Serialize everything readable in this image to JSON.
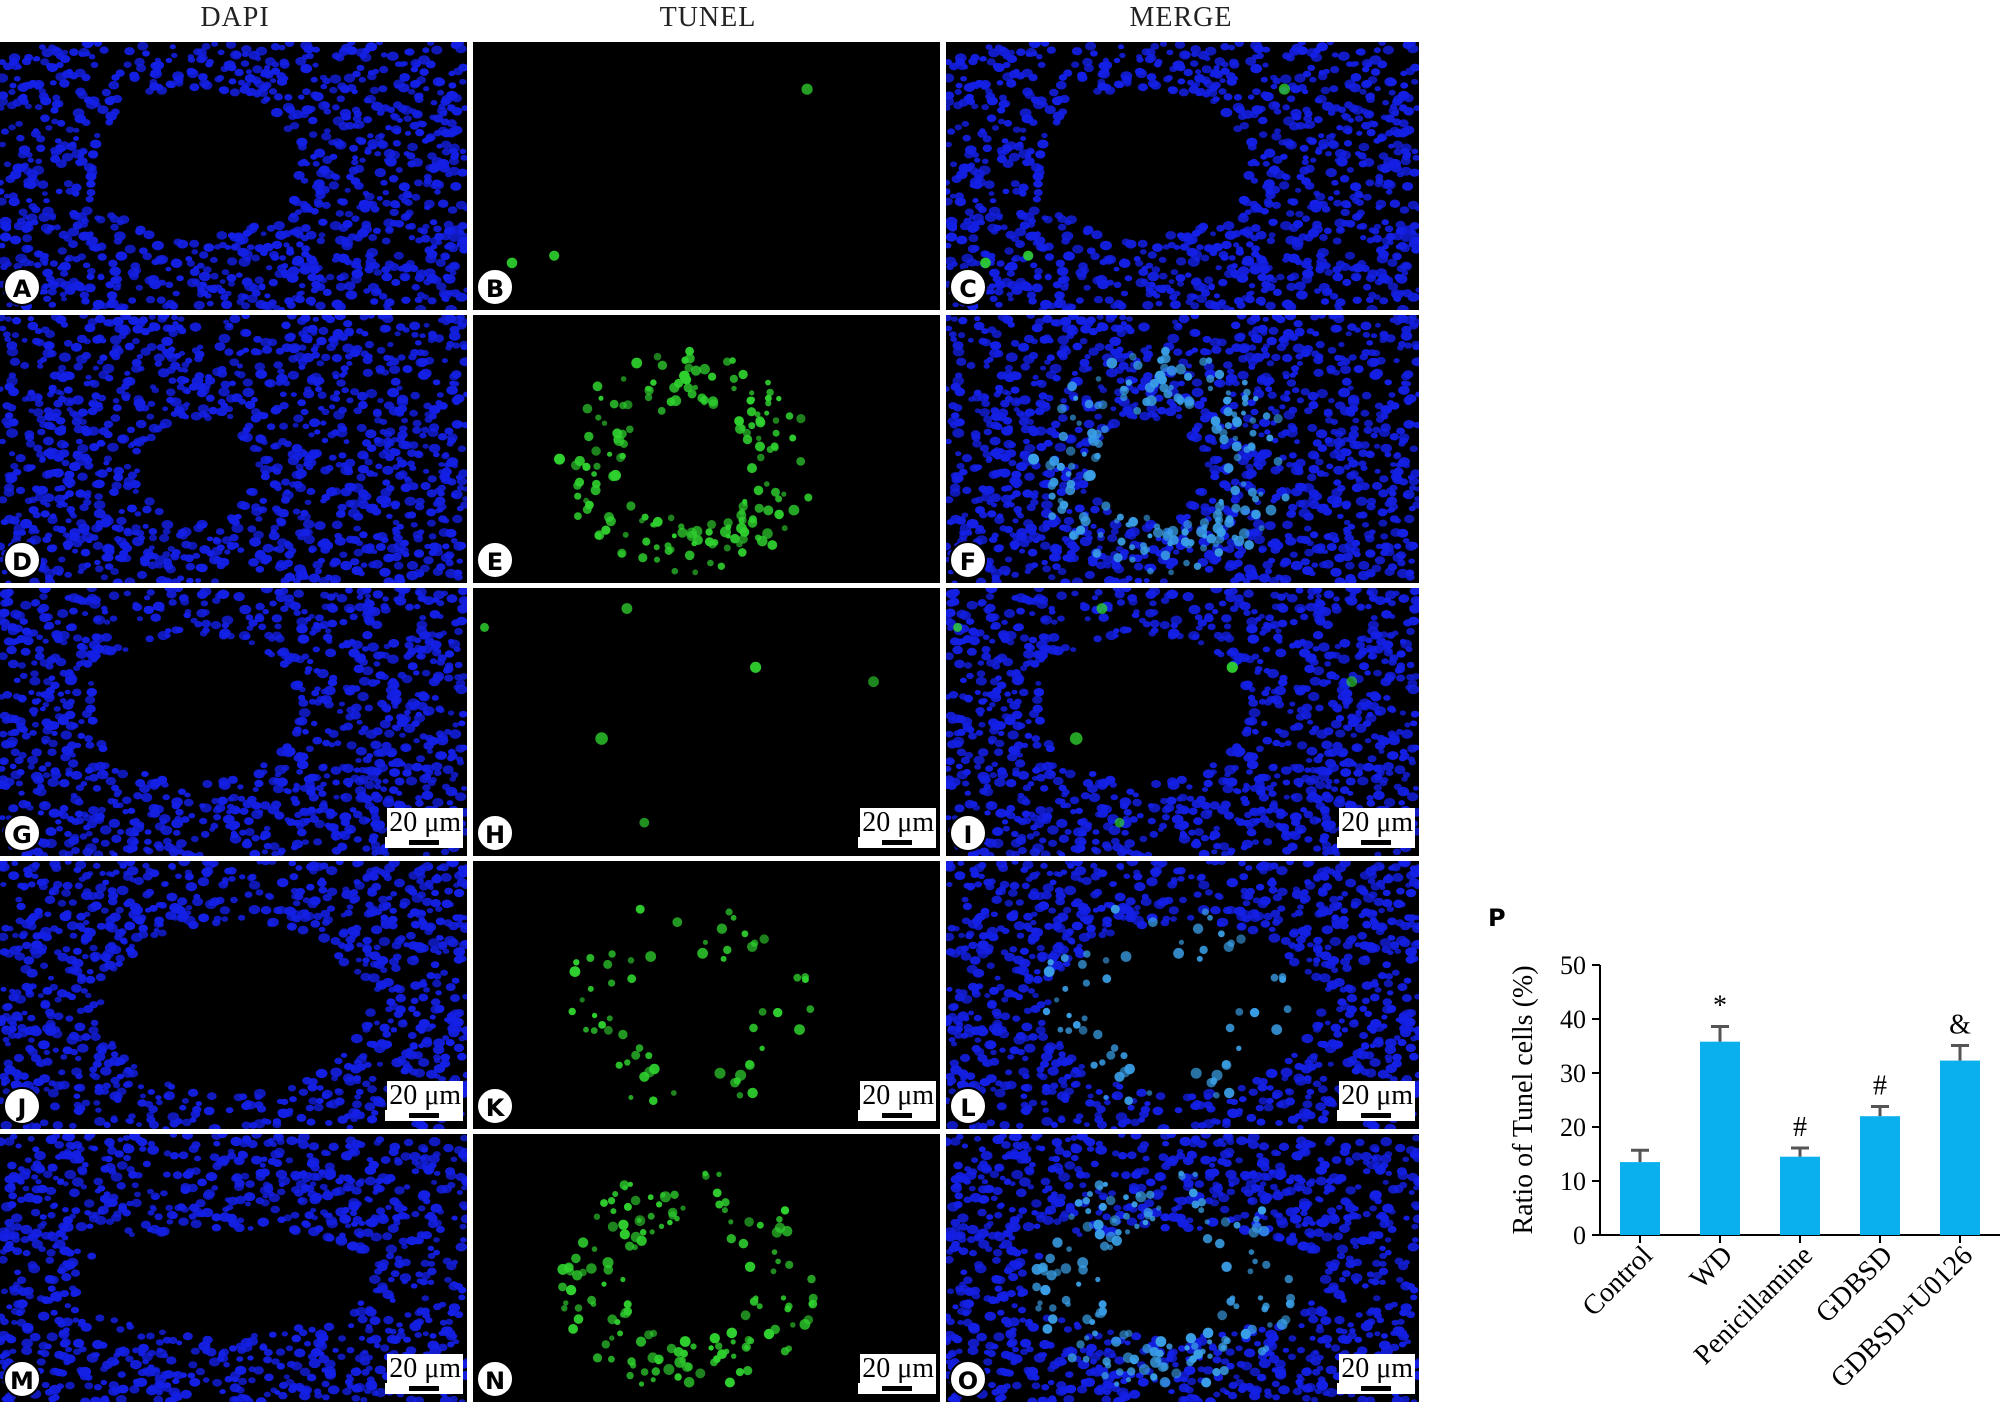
{
  "columns": [
    "DAPI",
    "TUNEL",
    "MERGE"
  ],
  "panels": [
    {
      "label": "A",
      "channel": "dapi",
      "pattern": "ring",
      "green": "sparse",
      "scale": ""
    },
    {
      "label": "B",
      "channel": "tunel",
      "pattern": "ring",
      "green": "sparse",
      "scale": ""
    },
    {
      "label": "C",
      "channel": "merge",
      "pattern": "ring",
      "green": "sparse",
      "scale": ""
    },
    {
      "label": "D",
      "channel": "dapi",
      "pattern": "tubule",
      "green": "dense",
      "scale": ""
    },
    {
      "label": "E",
      "channel": "tunel",
      "pattern": "tubule",
      "green": "dense",
      "scale": ""
    },
    {
      "label": "F",
      "channel": "merge",
      "pattern": "tubule",
      "green": "dense",
      "scale": ""
    },
    {
      "label": "G",
      "channel": "dapi",
      "pattern": "ring",
      "green": "few",
      "scale": "20 μm"
    },
    {
      "label": "H",
      "channel": "tunel",
      "pattern": "ring",
      "green": "few",
      "scale": "20 μm"
    },
    {
      "label": "I",
      "channel": "merge",
      "pattern": "ring",
      "green": "few",
      "scale": "20 μm"
    },
    {
      "label": "J",
      "channel": "dapi",
      "pattern": "oval",
      "green": "moderate",
      "scale": "20 μm"
    },
    {
      "label": "K",
      "channel": "tunel",
      "pattern": "oval",
      "green": "moderate",
      "scale": "20 μm"
    },
    {
      "label": "L",
      "channel": "merge",
      "pattern": "oval",
      "green": "moderate",
      "scale": "20 μm"
    },
    {
      "label": "M",
      "channel": "dapi",
      "pattern": "lumen",
      "green": "high",
      "scale": "20 μm"
    },
    {
      "label": "N",
      "channel": "tunel",
      "pattern": "lumen",
      "green": "high",
      "scale": "20 μm"
    },
    {
      "label": "O",
      "channel": "merge",
      "pattern": "lumen",
      "green": "high",
      "scale": "20 μm"
    }
  ],
  "colors": {
    "dapi": "#1420e6",
    "tunel": "#2fd12f",
    "merge_overlap": "#3aa0e8",
    "bar": "#0ab0ee"
  },
  "chart_data": {
    "panel_label": "P",
    "type": "bar",
    "categories": [
      "Control",
      "WD",
      "Penicillamine",
      "GDBSD",
      "GDBSD+U0126"
    ],
    "values": [
      13.5,
      35.8,
      14.5,
      22.0,
      32.3
    ],
    "errors": [
      2.2,
      2.8,
      1.6,
      1.8,
      2.8
    ],
    "annotations": [
      "",
      "*",
      "#",
      "#",
      "&"
    ],
    "xlabel": "",
    "ylabel": "Ratio of Tunel cells (%)",
    "ylim": [
      0,
      50
    ],
    "yticks": [
      0,
      10,
      20,
      30,
      40,
      50
    ],
    "grid": false,
    "legend": "none"
  }
}
